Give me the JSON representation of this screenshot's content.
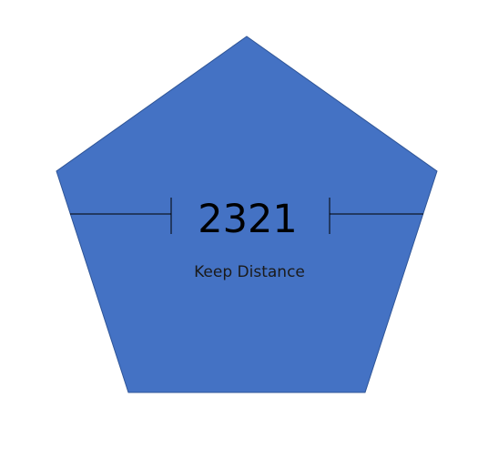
{
  "colors": {
    "shape_fill": "#4472c4",
    "shape_stroke": "#2f5597",
    "line": "#000000",
    "background": "#ffffff"
  },
  "shape": "pentagon",
  "value": "2321",
  "caption": "Keep Distance"
}
